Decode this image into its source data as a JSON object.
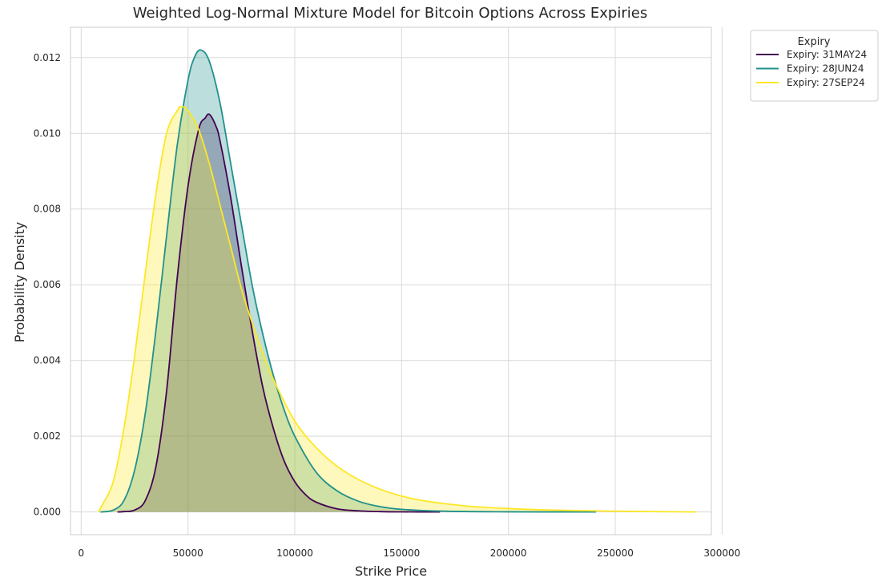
{
  "chart_data": {
    "type": "area",
    "title": "Weighted Log-Normal Mixture Model for Bitcoin Options Across Expiries",
    "xlabel": "Strike Price",
    "ylabel": "Probability Density",
    "xlim": [
      -5000,
      295000
    ],
    "ylim": [
      -0.0006,
      0.0128
    ],
    "xticks": [
      0,
      50000,
      100000,
      150000,
      200000,
      250000,
      300000
    ],
    "yticks": [
      0.0,
      0.002,
      0.004,
      0.006,
      0.008,
      0.01,
      0.012
    ],
    "xtick_labels": [
      "0",
      "50000",
      "100000",
      "150000",
      "200000",
      "250000",
      "300000"
    ],
    "ytick_labels": [
      "0.000",
      "0.002",
      "0.004",
      "0.006",
      "0.008",
      "0.010",
      "0.012"
    ],
    "grid": true,
    "legend": {
      "title": "Expiry",
      "placement": "outside-top-right"
    },
    "series": [
      {
        "name": "Expiry: 31MAY24",
        "color": "#440154",
        "fill_alpha": 0.3,
        "points": [
          [
            17000,
            0.0
          ],
          [
            20000,
            1e-05
          ],
          [
            25000,
            5e-05
          ],
          [
            30000,
            0.0003
          ],
          [
            35000,
            0.0012
          ],
          [
            40000,
            0.0032
          ],
          [
            45000,
            0.0062
          ],
          [
            50000,
            0.0086
          ],
          [
            55000,
            0.0101
          ],
          [
            58000,
            0.0104
          ],
          [
            60000,
            0.0105
          ],
          [
            63000,
            0.0102
          ],
          [
            65000,
            0.0098
          ],
          [
            70000,
            0.0083
          ],
          [
            75000,
            0.0065
          ],
          [
            80000,
            0.0048
          ],
          [
            85000,
            0.0033
          ],
          [
            90000,
            0.0022
          ],
          [
            95000,
            0.00135
          ],
          [
            100000,
            0.0008
          ],
          [
            105000,
            0.00046
          ],
          [
            110000,
            0.00026
          ],
          [
            120000,
            8e-05
          ],
          [
            130000,
            3e-05
          ],
          [
            140000,
            1e-05
          ],
          [
            150000,
            3e-06
          ],
          [
            168000,
            0.0
          ]
        ]
      },
      {
        "name": "Expiry: 28JUN24",
        "color": "#21918c",
        "fill_alpha": 0.3,
        "points": [
          [
            9000,
            0.0
          ],
          [
            15000,
            5e-05
          ],
          [
            20000,
            0.0003
          ],
          [
            25000,
            0.0011
          ],
          [
            30000,
            0.0026
          ],
          [
            35000,
            0.0048
          ],
          [
            40000,
            0.0073
          ],
          [
            45000,
            0.0097
          ],
          [
            50000,
            0.0114
          ],
          [
            53000,
            0.012
          ],
          [
            56000,
            0.0122
          ],
          [
            60000,
            0.0119
          ],
          [
            65000,
            0.0108
          ],
          [
            70000,
            0.0092
          ],
          [
            75000,
            0.0076
          ],
          [
            80000,
            0.006
          ],
          [
            85000,
            0.0047
          ],
          [
            90000,
            0.0036
          ],
          [
            95000,
            0.0027
          ],
          [
            100000,
            0.002
          ],
          [
            110000,
            0.00105
          ],
          [
            120000,
            0.00055
          ],
          [
            130000,
            0.00028
          ],
          [
            140000,
            0.00014
          ],
          [
            150000,
            7e-05
          ],
          [
            170000,
            2e-05
          ],
          [
            200000,
            5e-06
          ],
          [
            241000,
            0.0
          ]
        ]
      },
      {
        "name": "Expiry: 27SEP24",
        "color": "#fde725",
        "fill_alpha": 0.3,
        "points": [
          [
            8000,
            0.0
          ],
          [
            10000,
            0.0002
          ],
          [
            15000,
            0.0008
          ],
          [
            20000,
            0.0022
          ],
          [
            25000,
            0.0041
          ],
          [
            30000,
            0.0063
          ],
          [
            35000,
            0.0084
          ],
          [
            40000,
            0.01
          ],
          [
            45000,
            0.0106
          ],
          [
            47000,
            0.0107
          ],
          [
            50000,
            0.0106
          ],
          [
            55000,
            0.0101
          ],
          [
            60000,
            0.0092
          ],
          [
            65000,
            0.0081
          ],
          [
            70000,
            0.007
          ],
          [
            75000,
            0.0059
          ],
          [
            80000,
            0.005
          ],
          [
            85000,
            0.0042
          ],
          [
            90000,
            0.0035
          ],
          [
            100000,
            0.0024
          ],
          [
            110000,
            0.0017
          ],
          [
            120000,
            0.0012
          ],
          [
            130000,
            0.00085
          ],
          [
            140000,
            0.0006
          ],
          [
            150000,
            0.00042
          ],
          [
            160000,
            0.0003
          ],
          [
            180000,
            0.00016
          ],
          [
            200000,
            9e-05
          ],
          [
            220000,
            5e-05
          ],
          [
            250000,
            2e-05
          ],
          [
            288000,
            0.0
          ]
        ]
      }
    ]
  }
}
